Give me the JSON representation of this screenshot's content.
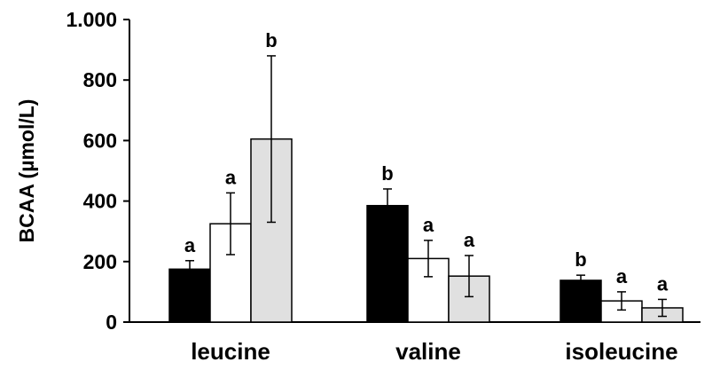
{
  "chart_data": {
    "type": "bar",
    "title": "",
    "xlabel": "",
    "ylabel": "BCAA (µmol/L)",
    "ylim": [
      0,
      1000
    ],
    "y_ticks": [
      {
        "value": 0,
        "label": "0"
      },
      {
        "value": 200,
        "label": "200"
      },
      {
        "value": 400,
        "label": "400"
      },
      {
        "value": 600,
        "label": "600"
      },
      {
        "value": 800,
        "label": "800"
      },
      {
        "value": 1000,
        "label": "1.000"
      }
    ],
    "categories": [
      "leucine",
      "valine",
      "isoleucine"
    ],
    "series": [
      {
        "color": "#000000",
        "values": [
          175,
          385,
          138
        ],
        "errors": [
          28,
          55,
          17
        ],
        "letters": [
          "a",
          "b",
          "b"
        ]
      },
      {
        "color": "#ffffff",
        "values": [
          325,
          210,
          70
        ],
        "errors": [
          102,
          60,
          30
        ],
        "letters": [
          "a",
          "a",
          "a"
        ]
      },
      {
        "color": "#e0e0e0",
        "values": [
          605,
          152,
          47
        ],
        "errors": [
          275,
          68,
          28
        ],
        "letters": [
          "b",
          "a",
          "a"
        ]
      }
    ],
    "grid": false,
    "legend": "none"
  }
}
